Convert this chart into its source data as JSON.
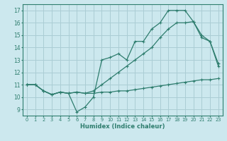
{
  "bg_color": "#cce8ee",
  "line_color": "#2e7d6e",
  "grid_color": "#aacdd4",
  "xlabel": "Humidex (Indice chaleur)",
  "xlim": [
    -0.5,
    23.5
  ],
  "ylim": [
    8.5,
    17.5
  ],
  "xticks": [
    0,
    1,
    2,
    3,
    4,
    5,
    6,
    7,
    8,
    9,
    10,
    11,
    12,
    13,
    14,
    15,
    16,
    17,
    18,
    19,
    20,
    21,
    22,
    23
  ],
  "yticks": [
    9,
    10,
    11,
    12,
    13,
    14,
    15,
    16,
    17
  ],
  "line1_x": [
    0,
    1,
    2,
    3,
    4,
    5,
    6,
    7,
    8,
    9,
    10,
    11,
    12,
    13,
    14,
    15,
    16,
    17,
    18,
    19,
    20,
    21,
    22,
    23
  ],
  "line1_y": [
    11.0,
    11.0,
    10.5,
    10.2,
    10.4,
    10.3,
    8.8,
    9.2,
    10.0,
    13.0,
    13.2,
    13.5,
    13.0,
    14.5,
    14.5,
    15.5,
    16.0,
    17.0,
    17.0,
    17.0,
    16.1,
    14.8,
    14.5,
    12.7
  ],
  "line2_x": [
    0,
    1,
    2,
    3,
    4,
    5,
    6,
    7,
    8,
    9,
    10,
    11,
    12,
    13,
    14,
    15,
    16,
    17,
    18,
    19,
    20,
    21,
    22,
    23
  ],
  "line2_y": [
    11.0,
    11.0,
    10.5,
    10.2,
    10.4,
    10.3,
    10.4,
    10.3,
    10.5,
    11.0,
    11.5,
    12.0,
    12.5,
    13.0,
    13.5,
    14.0,
    14.8,
    15.5,
    16.0,
    16.0,
    16.1,
    15.0,
    14.5,
    12.5
  ],
  "line3_x": [
    0,
    1,
    2,
    3,
    4,
    5,
    6,
    7,
    8,
    9,
    10,
    11,
    12,
    13,
    14,
    15,
    16,
    17,
    18,
    19,
    20,
    21,
    22,
    23
  ],
  "line3_y": [
    11.0,
    11.0,
    10.5,
    10.2,
    10.4,
    10.3,
    10.4,
    10.3,
    10.3,
    10.4,
    10.4,
    10.5,
    10.5,
    10.6,
    10.7,
    10.8,
    10.9,
    11.0,
    11.1,
    11.2,
    11.3,
    11.4,
    11.4,
    11.5
  ]
}
